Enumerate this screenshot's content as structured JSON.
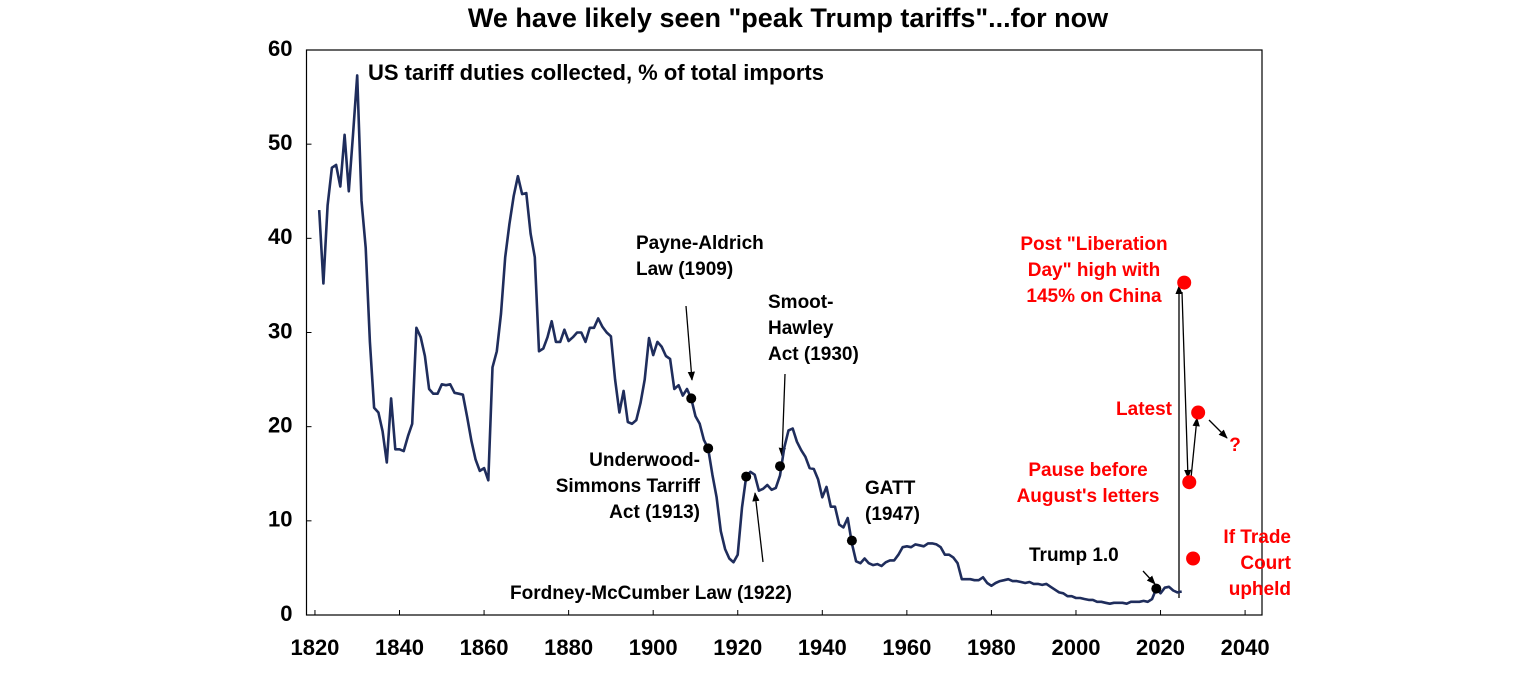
{
  "chart_data": {
    "type": "line",
    "title": "We have likely seen \"peak Trump tariffs\"...for now",
    "subtitle": "US tariff duties collected, % of total imports",
    "color": "#1f2d5c",
    "xlim": [
      1818,
      2044
    ],
    "xticks": [
      1820,
      1840,
      1860,
      1880,
      1900,
      1920,
      1940,
      1960,
      1980,
      2000,
      2020,
      2040
    ],
    "ylim": [
      0,
      60
    ],
    "yticks": [
      0,
      10,
      20,
      30,
      40,
      50,
      60
    ],
    "grid": false,
    "x": [
      1821,
      1822,
      1823,
      1824,
      1825,
      1826,
      1827,
      1828,
      1829,
      1830,
      1831,
      1832,
      1833,
      1834,
      1835,
      1836,
      1837,
      1838,
      1839,
      1840,
      1841,
      1842,
      1843,
      1844,
      1845,
      1846,
      1847,
      1848,
      1849,
      1850,
      1851,
      1852,
      1853,
      1854,
      1855,
      1856,
      1857,
      1858,
      1859,
      1860,
      1861,
      1862,
      1863,
      1864,
      1865,
      1866,
      1867,
      1868,
      1869,
      1870,
      1871,
      1872,
      1873,
      1874,
      1875,
      1876,
      1877,
      1878,
      1879,
      1880,
      1881,
      1882,
      1883,
      1884,
      1885,
      1886,
      1887,
      1888,
      1889,
      1890,
      1891,
      1892,
      1893,
      1894,
      1895,
      1896,
      1897,
      1898,
      1899,
      1900,
      1901,
      1902,
      1903,
      1904,
      1905,
      1906,
      1907,
      1908,
      1909,
      1910,
      1911,
      1912,
      1913,
      1914,
      1915,
      1916,
      1917,
      1918,
      1919,
      1920,
      1921,
      1922,
      1923,
      1924,
      1925,
      1926,
      1927,
      1928,
      1929,
      1930,
      1931,
      1932,
      1933,
      1934,
      1935,
      1936,
      1937,
      1938,
      1939,
      1940,
      1941,
      1942,
      1943,
      1944,
      1945,
      1946,
      1947,
      1948,
      1949,
      1950,
      1951,
      1952,
      1953,
      1954,
      1955,
      1956,
      1957,
      1958,
      1959,
      1960,
      1961,
      1962,
      1963,
      1964,
      1965,
      1966,
      1967,
      1968,
      1969,
      1970,
      1971,
      1972,
      1973,
      1974,
      1975,
      1976,
      1977,
      1978,
      1979,
      1980,
      1981,
      1982,
      1983,
      1984,
      1985,
      1986,
      1987,
      1988,
      1989,
      1990,
      1991,
      1992,
      1993,
      1994,
      1995,
      1996,
      1997,
      1998,
      1999,
      2000,
      2001,
      2002,
      2003,
      2004,
      2005,
      2006,
      2007,
      2008,
      2009,
      2010,
      2011,
      2012,
      2013,
      2014,
      2015,
      2016,
      2017,
      2018,
      2019,
      2020,
      2021,
      2022,
      2023,
      2024,
      2025
    ],
    "values": [
      43,
      35.2,
      43.5,
      47.5,
      47.8,
      45.5,
      51,
      45,
      51,
      57.3,
      44,
      39,
      29,
      22,
      21.5,
      19.5,
      16.2,
      23,
      17.6,
      17.6,
      17.4,
      19,
      20.3,
      30.5,
      29.5,
      27.5,
      24,
      23.5,
      23.5,
      24.5,
      24.4,
      24.5,
      23.6,
      23.5,
      23.4,
      21,
      18.5,
      16.5,
      15.3,
      15.6,
      14.3,
      26.3,
      28,
      32,
      38,
      41.5,
      44.5,
      46.6,
      44.7,
      44.8,
      40.5,
      38,
      28,
      28.3,
      29.5,
      31.2,
      29,
      29,
      30.3,
      29.1,
      29.5,
      30,
      30,
      29,
      30.5,
      30.5,
      31.5,
      30.6,
      30,
      29.6,
      25,
      21.5,
      23.8,
      20.5,
      20.3,
      20.7,
      22.5,
      25,
      29.4,
      27.6,
      29,
      28.5,
      27.5,
      27.2,
      24,
      24.4,
      23.3,
      24,
      23,
      21.1,
      20.3,
      18.6,
      17.7,
      14.9,
      12.5,
      8.9,
      7,
      6,
      5.6,
      6.4,
      11.4,
      14.7,
      15.2,
      14.9,
      13.2,
      13.4,
      13.8,
      13.3,
      13.5,
      14.8,
      17.8,
      19.6,
      19.8,
      18.4,
      17.5,
      16.8,
      15.6,
      15.5,
      14.4,
      12.5,
      13.6,
      11.5,
      11.5,
      9.6,
      9.3,
      10.3,
      7.6,
      5.7,
      5.5,
      6,
      5.5,
      5.3,
      5.4,
      5.2,
      5.6,
      5.8,
      5.8,
      6.4,
      7.2,
      7.3,
      7.2,
      7.5,
      7.4,
      7.3,
      7.6,
      7.6,
      7.5,
      7.2,
      6.4,
      6.4,
      6.1,
      5.5,
      3.8,
      3.8,
      3.8,
      3.7,
      3.7,
      4,
      3.4,
      3.1,
      3.4,
      3.6,
      3.7,
      3.8,
      3.6,
      3.6,
      3.5,
      3.4,
      3.5,
      3.3,
      3.3,
      3.2,
      3.3,
      3,
      2.7,
      2.4,
      2.3,
      2,
      2,
      1.8,
      1.8,
      1.7,
      1.6,
      1.6,
      1.4,
      1.4,
      1.3,
      1.2,
      1.3,
      1.3,
      1.3,
      1.2,
      1.4,
      1.4,
      1.4,
      1.5,
      1.4,
      1.7,
      2.8,
      2.3,
      2.9,
      3,
      2.6,
      2.4,
      2.5
    ],
    "markers": {
      "color": "#000000",
      "x": [
        1909,
        1913,
        1922,
        1930,
        1947,
        2019
      ],
      "values": [
        23,
        17.7,
        14.7,
        15.8,
        7.9,
        2.8
      ]
    },
    "highlights": {
      "color": "#ff0000",
      "x": [
        2025.6,
        2028.9,
        2026.8,
        2027.7
      ],
      "values": [
        35.3,
        21.5,
        14.1,
        6.0
      ]
    },
    "annotations": [
      {
        "lines": [
          "Payne-Aldrich",
          "Law (1909)"
        ],
        "color": "#000000"
      },
      {
        "lines": [
          "Underwood-",
          "Simmons Tarriff",
          "Act (1913)"
        ],
        "color": "#000000"
      },
      {
        "lines": [
          "Fordney-McCumber Law (1922)"
        ],
        "color": "#000000"
      },
      {
        "lines": [
          "Smoot-",
          "Hawley",
          "Act (1930)"
        ],
        "color": "#000000"
      },
      {
        "lines": [
          "GATT",
          "(1947)"
        ],
        "color": "#000000"
      },
      {
        "lines": [
          "Trump 1.0"
        ],
        "color": "#000000"
      },
      {
        "lines": [
          "Post \"Liberation",
          "Day\" high with",
          "145% on China"
        ],
        "color": "#ff0000"
      },
      {
        "lines": [
          "Latest"
        ],
        "color": "#ff0000"
      },
      {
        "lines": [
          "Pause before",
          "August's letters"
        ],
        "color": "#ff0000"
      },
      {
        "lines": [
          "If Trade",
          "Court",
          "upheld"
        ],
        "color": "#ff0000"
      },
      {
        "lines": [
          "?"
        ],
        "color": "#ff0000"
      }
    ]
  }
}
